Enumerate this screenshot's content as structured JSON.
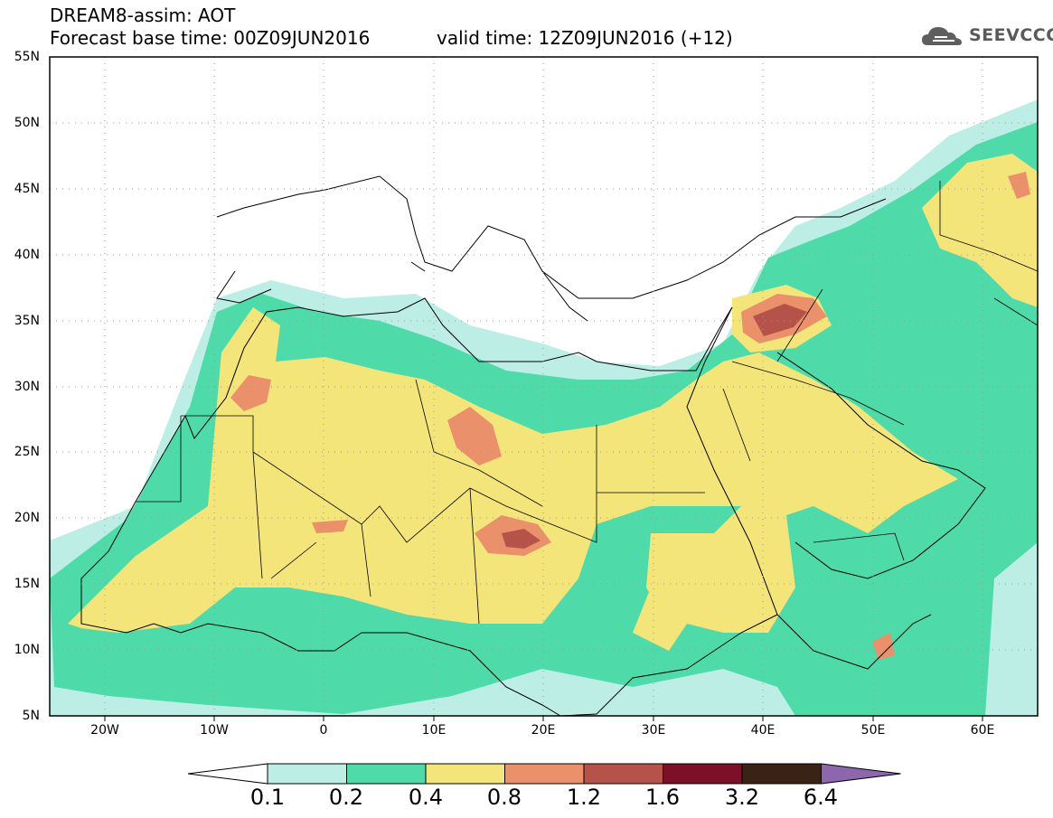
{
  "header": {
    "title": "DREAM8-assim: AOT",
    "base_time": "Forecast base time: 00Z09JUN2016",
    "valid_time": "valid time: 12Z09JUN2016 (+12)",
    "logo": "SEEVCCC"
  },
  "map": {
    "lon_range": [
      -25,
      65
    ],
    "lat_range": [
      5,
      55
    ],
    "lat_labels": [
      "55N",
      "50N",
      "45N",
      "40N",
      "35N",
      "30N",
      "25N",
      "20N",
      "15N",
      "10N",
      "5N"
    ],
    "lon_labels": [
      "20W",
      "10W",
      "0",
      "10E",
      "20E",
      "30E",
      "40E",
      "50E",
      "60E"
    ],
    "grid": "dotted"
  },
  "colorbar": {
    "labels": [
      "0.1",
      "0.2",
      "0.4",
      "0.8",
      "1.2",
      "1.6",
      "3.2",
      "6.4"
    ],
    "colors": [
      "#ffffff",
      "#bdeee6",
      "#4fdaa9",
      "#f4e57a",
      "#ea906b",
      "#b5534a",
      "#7d0f29",
      "#3a2314",
      "#8e66ad"
    ]
  },
  "icons": {
    "logo": "cloud-icon"
  }
}
